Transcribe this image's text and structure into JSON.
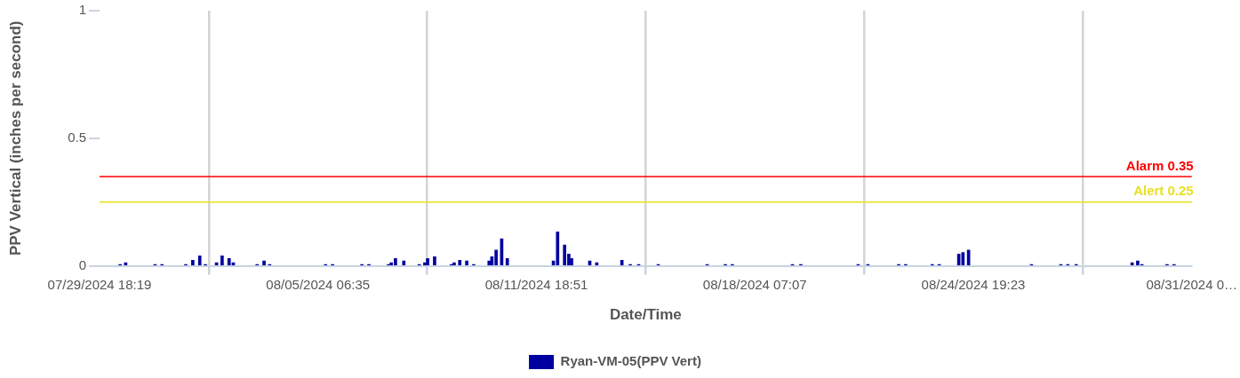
{
  "chart_data": {
    "type": "bar",
    "xlabel": "Date/Time",
    "ylabel": "PPV Vertical (inches per second)",
    "x": [
      "2024-07-30T09:00",
      "2024-07-30T13:00",
      "2024-07-31T10:00",
      "2024-07-31T15:00",
      "2024-08-01T08:00",
      "2024-08-01T13:00",
      "2024-08-01T18:00",
      "2024-08-01T22:00",
      "2024-08-02T06:00",
      "2024-08-02T10:00",
      "2024-08-02T15:00",
      "2024-08-02T18:00",
      "2024-08-03T11:00",
      "2024-08-03T16:00",
      "2024-08-03T20:00",
      "2024-08-05T12:00",
      "2024-08-05T17:00",
      "2024-08-06T14:00",
      "2024-08-06T19:00",
      "2024-08-07T09:00",
      "2024-08-07T11:00",
      "2024-08-07T14:00",
      "2024-08-07T20:00",
      "2024-08-08T07:00",
      "2024-08-08T11:00",
      "2024-08-08T13:00",
      "2024-08-08T18:00",
      "2024-08-09T06:00",
      "2024-08-09T08:00",
      "2024-08-09T12:00",
      "2024-08-09T17:00",
      "2024-08-09T22:00",
      "2024-08-10T09:00",
      "2024-08-10T11:00",
      "2024-08-10T14:00",
      "2024-08-10T18:00",
      "2024-08-10T22:00",
      "2024-08-12T07:00",
      "2024-08-12T10:00",
      "2024-08-12T15:00",
      "2024-08-12T18:00",
      "2024-08-12T20:00",
      "2024-08-13T09:00",
      "2024-08-13T14:00",
      "2024-08-14T08:00",
      "2024-08-14T14:00",
      "2024-08-14T20:00",
      "2024-08-15T10:00",
      "2024-08-16T21:00",
      "2024-08-17T10:00",
      "2024-08-17T15:00",
      "2024-08-19T10:00",
      "2024-08-19T16:00",
      "2024-08-21T09:00",
      "2024-08-21T16:00",
      "2024-08-22T14:00",
      "2024-08-22T19:00",
      "2024-08-23T14:00",
      "2024-08-23T19:00",
      "2024-08-24T09:00",
      "2024-08-24T12:00",
      "2024-08-24T16:00",
      "2024-08-26T13:00",
      "2024-08-27T10:00",
      "2024-08-27T15:00",
      "2024-08-27T21:00",
      "2024-08-29T13:00",
      "2024-08-29T17:00",
      "2024-08-29T20:00",
      "2024-08-30T14:00",
      "2024-08-30T19:00"
    ],
    "series": [
      {
        "name": "Ryan-VM-05(PPV Vert)",
        "color": "#0000a0",
        "values": [
          0.005,
          0.012,
          0.005,
          0.005,
          0.005,
          0.022,
          0.039,
          0.005,
          0.012,
          0.039,
          0.029,
          0.012,
          0.005,
          0.019,
          0.005,
          0.005,
          0.005,
          0.005,
          0.005,
          0.005,
          0.012,
          0.029,
          0.019,
          0.005,
          0.012,
          0.029,
          0.036,
          0.005,
          0.012,
          0.022,
          0.019,
          0.005,
          0.019,
          0.036,
          0.062,
          0.106,
          0.029,
          0.019,
          0.133,
          0.082,
          0.046,
          0.029,
          0.019,
          0.012,
          0.022,
          0.005,
          0.005,
          0.005,
          0.005,
          0.005,
          0.005,
          0.005,
          0.005,
          0.005,
          0.005,
          0.005,
          0.005,
          0.005,
          0.005,
          0.046,
          0.052,
          0.062,
          0.005,
          0.005,
          0.005,
          0.005,
          0.012,
          0.019,
          0.005,
          0.005,
          0.005
        ]
      }
    ],
    "xlim": [
      "2024-07-29T18:19",
      "2024-08-31T07:39"
    ],
    "xticks": [
      {
        "value": "2024-07-29T18:19",
        "label": "07/29/2024 18:19"
      },
      {
        "value": "2024-08-05T06:35",
        "label": "08/05/2024 06:35"
      },
      {
        "value": "2024-08-11T18:51",
        "label": "08/11/2024 18:51"
      },
      {
        "value": "2024-08-18T07:07",
        "label": "08/18/2024 07:07"
      },
      {
        "value": "2024-08-24T19:23",
        "label": "08/24/2024 19:23"
      },
      {
        "value": "2024-08-31T07:39",
        "label": "08/31/2024 0…"
      }
    ],
    "ylim": [
      0,
      1
    ],
    "yticks": [
      0,
      0.5,
      1
    ],
    "ref_lines": [
      {
        "axis": "y",
        "value": 0.35,
        "label": "Alarm 0.35",
        "color": "#ff0000"
      },
      {
        "axis": "y",
        "value": 0.25,
        "label": "Alert 0.25",
        "color": "#e8e020"
      }
    ],
    "grid": "x",
    "legend": "bottom"
  }
}
